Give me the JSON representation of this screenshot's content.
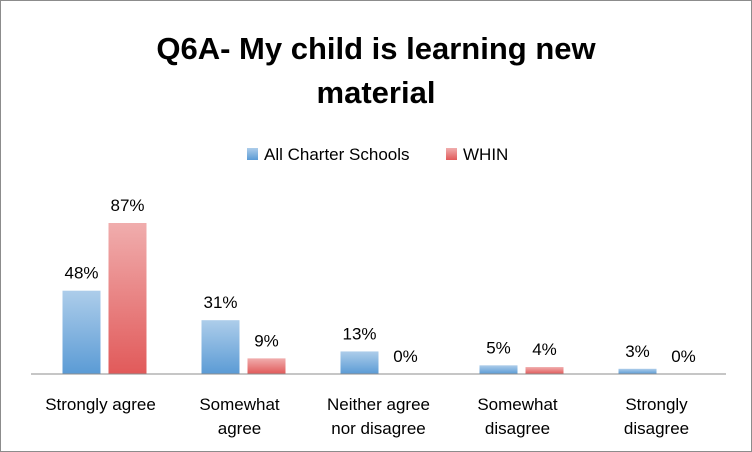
{
  "chart_data": {
    "type": "bar",
    "title_lines": [
      "Q6A- My child is learning new",
      "material"
    ],
    "categories": [
      [
        "Strongly agree"
      ],
      [
        "Somewhat",
        "agree"
      ],
      [
        "Neither agree",
        "nor disagree"
      ],
      [
        "Somewhat",
        "disagree"
      ],
      [
        "Strongly",
        "disagree"
      ]
    ],
    "series": [
      {
        "name": "All Charter Schools",
        "values": [
          48,
          31,
          13,
          5,
          3
        ],
        "labels": [
          "48%",
          "31%",
          "13%",
          "5%",
          "3%"
        ],
        "color": "#5b9bd5"
      },
      {
        "name": "WHIN",
        "values": [
          87,
          9,
          0,
          4,
          0
        ],
        "labels": [
          "87%",
          "9%",
          "0%",
          "4%",
          "0%"
        ],
        "color": "#e15a5a"
      }
    ],
    "ylim": [
      0,
      100
    ],
    "grid": false,
    "legend_position": "top"
  }
}
